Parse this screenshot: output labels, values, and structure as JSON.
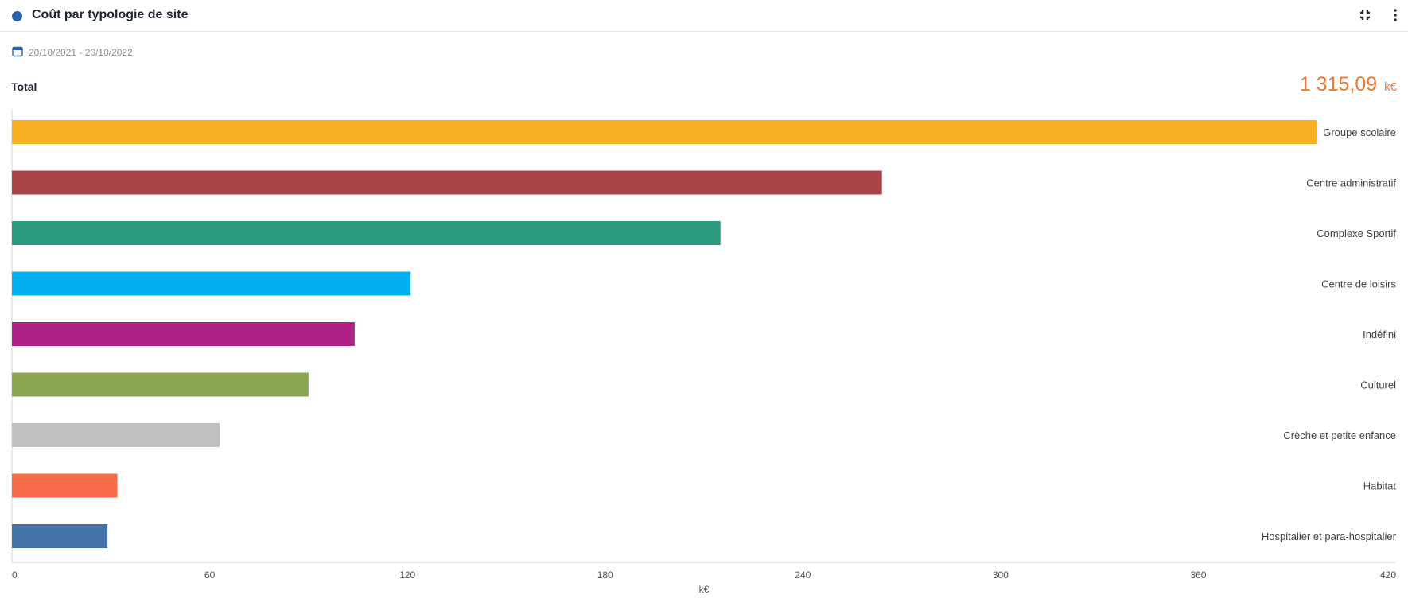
{
  "header": {
    "title": "Coût par typologie de site",
    "accent_color": "#2b62ad",
    "icons": [
      "collapse-icon",
      "more-vertical-icon"
    ]
  },
  "date_range": "20/10/2021 - 20/10/2022",
  "total": {
    "label": "Total",
    "value": "1 315,09",
    "unit": "k€",
    "color": "#f0782f"
  },
  "chart_data": {
    "type": "bar",
    "orientation": "horizontal",
    "title": "",
    "xlabel": "k€",
    "ylabel": "",
    "xlim": [
      0,
      420
    ],
    "xticks": [
      0,
      60,
      120,
      180,
      240,
      300,
      360,
      420
    ],
    "grid": false,
    "categories": [
      "Groupe scolaire",
      "Centre administratif",
      "Complexe Sportif",
      "Centre de loisirs",
      "Indéfini",
      "Culturel",
      "Crèche et petite enfance",
      "Habitat",
      "Hospitalier et para-hospitalier"
    ],
    "values": [
      396,
      264,
      215,
      121,
      104,
      90,
      63,
      32,
      29
    ],
    "colors": [
      "#f9b023",
      "#a94547",
      "#2a997e",
      "#00b0ef",
      "#ad2084",
      "#89a54e",
      "#c0c0c0",
      "#f56d48",
      "#4572a7"
    ]
  }
}
